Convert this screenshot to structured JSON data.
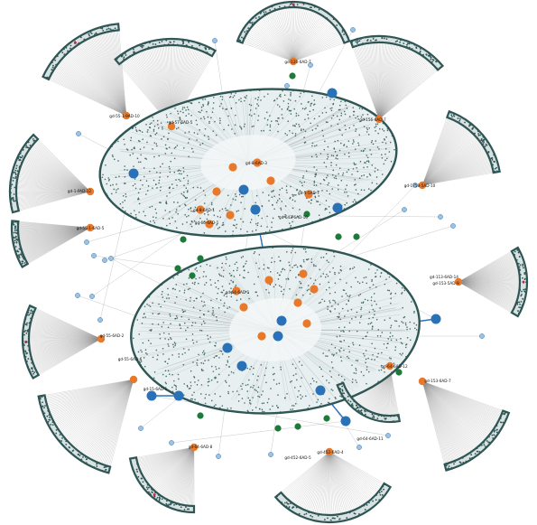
{
  "colors": {
    "hub_orange": "#e8782a",
    "hub_blue": "#2a72b8",
    "node_green": "#1e7a3a",
    "node_red": "#c8283c",
    "leaf_dark": "#2f5655",
    "leaf_light": "#e7eef0",
    "edge_gray": "#8c8c8c",
    "edge_blue": "#2a72b8",
    "edge_red": "#c8283c"
  },
  "node_labels": [
    {
      "id": "n1",
      "text": "gd-120-6AD-7"
    },
    {
      "id": "n2",
      "text": "gd-55-1-9AD-10"
    },
    {
      "id": "n3",
      "text": "gd-57-6AD-5"
    },
    {
      "id": "n4",
      "text": "gd-1758-5AD-10"
    },
    {
      "id": "n5",
      "text": "gd-156-6AD-7"
    },
    {
      "id": "n6",
      "text": "gd-1-PAD-12"
    },
    {
      "id": "n7",
      "text": "gd-55-1-6AD-5"
    },
    {
      "id": "n8",
      "text": "gd-8-6AD-3"
    },
    {
      "id": "n9",
      "text": "gd-66-6AD-1"
    },
    {
      "id": "n10",
      "text": "gd-643-6AD-10"
    },
    {
      "id": "n11",
      "text": "gd-8-6AD-1"
    },
    {
      "id": "n12",
      "text": "gd-1-5AD-7"
    },
    {
      "id": "n13",
      "text": "gd-113-6AD-14"
    },
    {
      "id": "n14",
      "text": "gd-153-5AD-9"
    },
    {
      "id": "n15",
      "text": "gd-55-6AD-2"
    },
    {
      "id": "n16",
      "text": "gd-55-6AD-6"
    },
    {
      "id": "n17",
      "text": "gd-15-6AD-1"
    },
    {
      "id": "n18",
      "text": "gd-153-6AD-7"
    },
    {
      "id": "n19",
      "text": "gd-64-6AD-12"
    },
    {
      "id": "n20",
      "text": "gd-64-6AD-8"
    },
    {
      "id": "n21",
      "text": "gd-452-6AD-5"
    },
    {
      "id": "n22",
      "text": "gd-452-6AD-4"
    },
    {
      "id": "n23",
      "text": "gd-64-6AD-11"
    },
    {
      "id": "n24",
      "text": "gd-64-6AD-1"
    }
  ]
}
